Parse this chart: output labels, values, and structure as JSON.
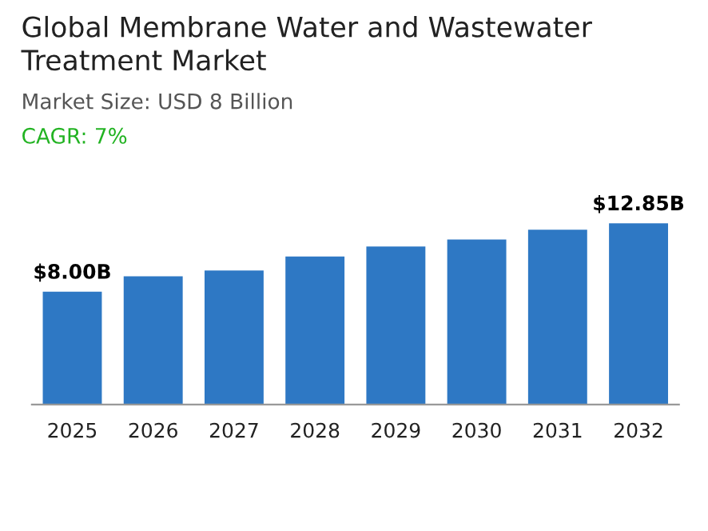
{
  "chart_data": {
    "type": "bar",
    "title": "Global Membrane Water and Wastewater\nTreatment Market",
    "subtitle": "Market Size: USD 8 Billion",
    "annotations": [
      "CAGR: 7%"
    ],
    "categories": [
      "2025",
      "2026",
      "2027",
      "2028",
      "2029",
      "2030",
      "2031",
      "2032"
    ],
    "values": [
      8.0,
      9.1,
      9.5,
      10.5,
      11.2,
      11.7,
      12.4,
      12.85
    ],
    "value_labels": [
      "$8.00B",
      null,
      null,
      null,
      null,
      null,
      null,
      "$12.85B"
    ],
    "color": "#2e78c4"
  }
}
